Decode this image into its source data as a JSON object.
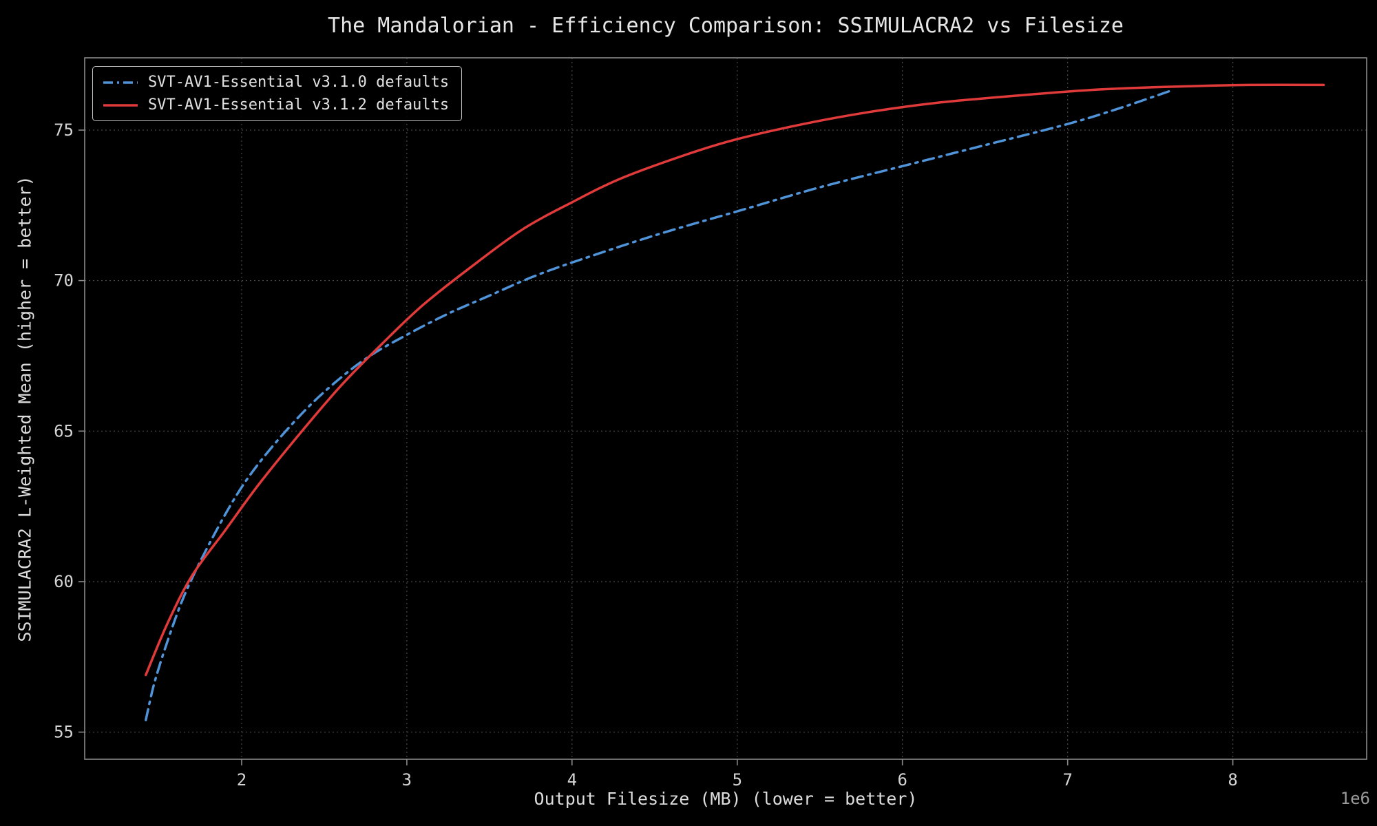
{
  "figure": {
    "background": "#000000",
    "text_color": "#e6e6e6",
    "spine_color": "#8a8a8a",
    "grid_color": "#474747",
    "offset_color": "#9a9a9a"
  },
  "chart_data": {
    "type": "line",
    "title": "The Mandalorian - Efficiency Comparison: SSIMULACRA2 vs Filesize",
    "xlabel": "Output Filesize (MB) (lower = better)",
    "ylabel": "SSIMULACRA2 L-Weighted Mean (higher = better)",
    "x_offset_label": "1e6",
    "xlim": [
      1.05,
      8.81
    ],
    "ylim": [
      54.1,
      77.4
    ],
    "x_ticks": [
      2,
      3,
      4,
      5,
      6,
      7,
      8
    ],
    "y_ticks": [
      55,
      60,
      65,
      70,
      75
    ],
    "grid": true,
    "legend_position": "upper left",
    "series": [
      {
        "name": "SVT-AV1-Essential v3.1.0 defaults",
        "color": "#4f93d8",
        "style": "dashdot",
        "x": [
          1.42,
          1.47,
          1.55,
          1.65,
          1.78,
          1.95,
          2.1,
          2.3,
          2.5,
          2.75,
          3.0,
          3.25,
          3.5,
          3.75,
          4.0,
          4.5,
          5.0,
          5.5,
          6.0,
          6.5,
          7.0,
          7.3,
          7.62
        ],
        "y": [
          55.4,
          56.6,
          58.0,
          59.5,
          61.0,
          62.7,
          63.9,
          65.2,
          66.3,
          67.4,
          68.2,
          68.9,
          69.5,
          70.1,
          70.6,
          71.5,
          72.3,
          73.1,
          73.8,
          74.5,
          75.2,
          75.7,
          76.3
        ]
      },
      {
        "name": "SVT-AV1-Essential v3.1.2 defaults",
        "color": "#e03a3a",
        "style": "solid",
        "x": [
          1.42,
          1.55,
          1.7,
          1.9,
          2.1,
          2.35,
          2.6,
          2.85,
          3.1,
          3.4,
          3.7,
          4.0,
          4.3,
          4.7,
          5.0,
          5.4,
          5.8,
          6.2,
          6.7,
          7.2,
          7.7,
          8.1,
          8.55
        ],
        "y": [
          56.9,
          58.6,
          60.2,
          61.7,
          63.2,
          64.9,
          66.5,
          67.9,
          69.2,
          70.5,
          71.7,
          72.6,
          73.4,
          74.2,
          74.7,
          75.2,
          75.6,
          75.9,
          76.15,
          76.35,
          76.45,
          76.5,
          76.5
        ]
      }
    ]
  }
}
